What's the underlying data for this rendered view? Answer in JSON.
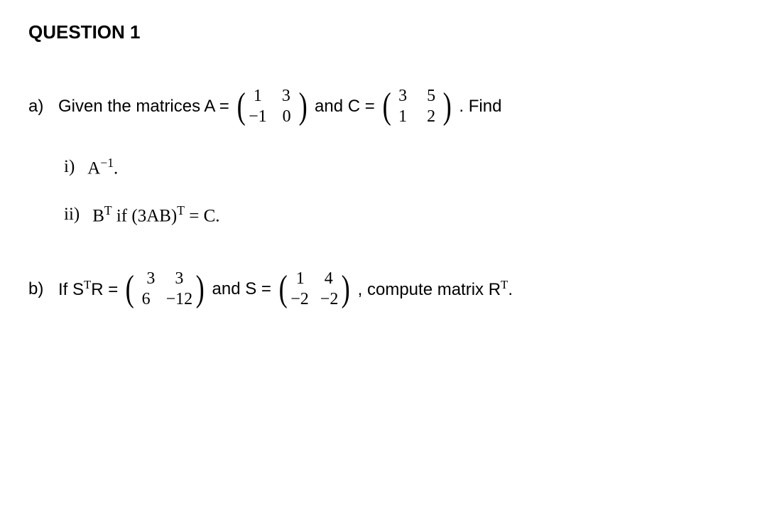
{
  "title": "QUESTION 1",
  "partA": {
    "label": "a)",
    "text1": "Given the matrices A =",
    "matrixA": {
      "r1c1": "1",
      "r1c2": "3",
      "r2c1": "−1",
      "r2c2": "0"
    },
    "text2": "and C =",
    "matrixC": {
      "r1c1": "3",
      "r1c2": "5",
      "r2c1": "1",
      "r2c2": "2"
    },
    "text3": ". Find",
    "sub1": {
      "label": "i)",
      "expr_base": "A",
      "expr_sup": "−1",
      "expr_tail": "."
    },
    "sub2": {
      "label": "ii)",
      "b_base": "B",
      "b_sup": "T",
      "mid": " if (3AB)",
      "mid_sup": "T",
      "tail": " = C."
    }
  },
  "partB": {
    "label": "b)",
    "text1_pre": "If S",
    "text1_sup": "T",
    "text1_post": "R =",
    "matrixSTR": {
      "r1c1": "3",
      "r1c2": "3",
      "r2c1": "6",
      "r2c2": "−12"
    },
    "text2": "and S =",
    "matrixS": {
      "r1c1": "1",
      "r1c2": "4",
      "r2c1": "−2",
      "r2c2": "−2"
    },
    "text3_pre": ", compute matrix R",
    "text3_sup": "T",
    "text3_post": "."
  }
}
